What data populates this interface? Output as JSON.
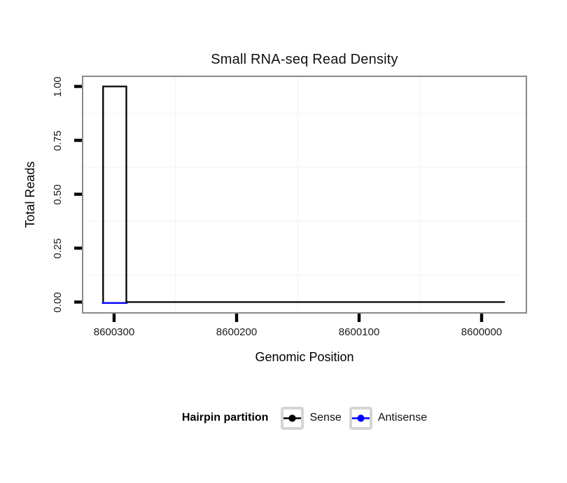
{
  "title": "Small RNA-seq Read Density",
  "chart_data": {
    "type": "line",
    "subtype": "step-coverage",
    "title": "Small RNA-seq Read Density",
    "xlabel": "Genomic Position",
    "ylabel": "Total Reads",
    "x_descending": true,
    "x_ticks": [
      8600300,
      8600200,
      8600100,
      8600000
    ],
    "x_tick_labels": [
      "8600300",
      "8600200",
      "8600100",
      "8600000"
    ],
    "y_ticks": [
      1.0,
      0.75,
      0.5,
      0.25,
      0.0
    ],
    "y_tick_labels": [
      "1.00",
      "0.75",
      "0.50",
      "0.25",
      "0.00"
    ],
    "ylim": [
      0,
      1
    ],
    "xlim_displayed": [
      8600326,
      8599963
    ],
    "grid": "minor-only",
    "legend_position": "bottom",
    "series": [
      {
        "name": "Sense",
        "color": "#000000",
        "points": [
          [
            8600309,
            0
          ],
          [
            8600309,
            1
          ],
          [
            8600290,
            1
          ],
          [
            8600290,
            0
          ],
          [
            8599981,
            0
          ]
        ]
      },
      {
        "name": "Antisense",
        "color": "#0000ff",
        "points": [
          [
            8600310,
            0
          ],
          [
            8600289,
            0
          ]
        ]
      }
    ]
  },
  "legend": {
    "title": "Hairpin partition",
    "items": [
      {
        "label": "Sense",
        "color": "#000000"
      },
      {
        "label": "Antisense",
        "color": "#0000ff"
      }
    ]
  },
  "colors": {
    "panel_border": "#8a8a8a",
    "minor_grid": "#f5f5f5",
    "tick_mark": "#000000",
    "legend_key_border": "#d5d5d5"
  }
}
